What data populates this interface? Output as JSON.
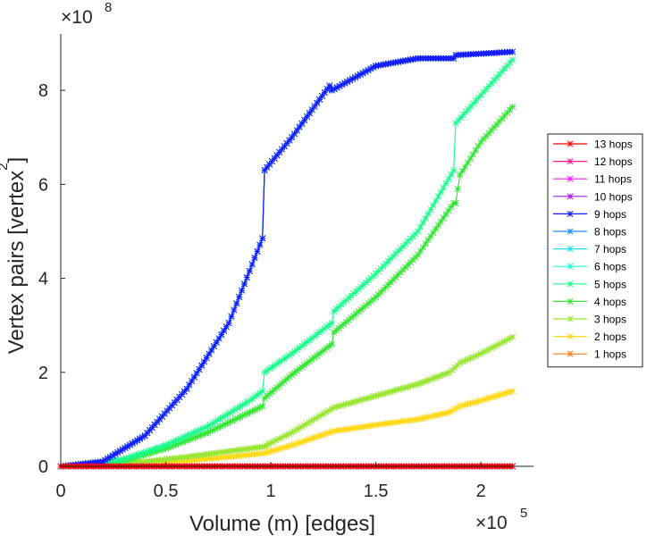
{
  "chart_data": {
    "type": "line",
    "title": "",
    "xlabel": "Volume (m) [edges]",
    "ylabel": "Vertex pairs [vertex",
    "ylabel_superscript": "2",
    "ylabel_close": "]",
    "x_multiplier": "×10",
    "x_multiplier_exp": "5",
    "y_multiplier": "×10",
    "y_multiplier_exp": "8",
    "xlim": [
      0,
      2.25
    ],
    "ylim": [
      0,
      9.2
    ],
    "x_ticks": [
      0,
      0.5,
      1,
      1.5,
      2
    ],
    "x_tick_labels": [
      "0",
      "0.5",
      "1",
      "1.5",
      "2"
    ],
    "y_ticks": [
      0,
      2,
      4,
      6,
      8
    ],
    "y_tick_labels": [
      "0",
      "2",
      "4",
      "6",
      "8"
    ],
    "legend_position": "right",
    "series": [
      {
        "name": "13 hops",
        "color": "#ff0000",
        "x": [
          0,
          2.15
        ],
        "y": [
          0,
          0
        ]
      },
      {
        "name": "12 hops",
        "color": "#ff1a8c",
        "x": [
          0,
          2.15
        ],
        "y": [
          0,
          0
        ]
      },
      {
        "name": "11 hops",
        "color": "#ff1aff",
        "x": [
          0,
          2.15
        ],
        "y": [
          0,
          0
        ]
      },
      {
        "name": "10 hops",
        "color": "#a61aff",
        "x": [
          0,
          2.15
        ],
        "y": [
          0,
          0
        ]
      },
      {
        "name": "9 hops",
        "color": "#1a1aff",
        "x": [
          0,
          0.2,
          0.4,
          0.6,
          0.8,
          0.96,
          0.97,
          1.1,
          1.28,
          1.29,
          1.5,
          1.7,
          1.87,
          1.88,
          2.0,
          2.15
        ],
        "y": [
          0,
          0.1,
          0.65,
          1.65,
          3.05,
          4.85,
          6.3,
          7.0,
          8.1,
          8.0,
          8.52,
          8.68,
          8.68,
          8.75,
          8.78,
          8.82
        ]
      },
      {
        "name": "8 hops",
        "color": "#1a8cff",
        "x": [
          0,
          0.2,
          0.4,
          0.6,
          0.8,
          0.96,
          0.97,
          1.1,
          1.28,
          1.29,
          1.5,
          1.7,
          1.87,
          1.88,
          2.0,
          2.15
        ],
        "y": [
          0,
          0.1,
          0.65,
          1.65,
          3.05,
          4.85,
          6.3,
          7.0,
          8.1,
          8.0,
          8.52,
          8.68,
          8.68,
          8.75,
          8.78,
          8.82
        ]
      },
      {
        "name": "7 hops",
        "color": "#1adfff",
        "x": [
          0,
          0.2,
          0.4,
          0.6,
          0.8,
          0.96,
          0.97,
          1.1,
          1.28,
          1.29,
          1.5,
          1.7,
          1.87,
          1.88,
          2.0,
          2.15
        ],
        "y": [
          0,
          0.1,
          0.65,
          1.65,
          3.05,
          4.85,
          6.3,
          7.0,
          8.1,
          8.0,
          8.52,
          8.68,
          8.68,
          8.75,
          8.78,
          8.82
        ]
      },
      {
        "name": "6 hops",
        "color": "#1affd9",
        "x": [
          0,
          0.2,
          0.4,
          0.6,
          0.8,
          0.96,
          0.97,
          1.1,
          1.28,
          1.29,
          1.5,
          1.7,
          1.87,
          1.88,
          2.0,
          2.15
        ],
        "y": [
          0,
          0.1,
          0.65,
          1.65,
          3.05,
          4.85,
          6.3,
          7.0,
          8.1,
          8.0,
          8.52,
          8.68,
          8.68,
          8.75,
          8.78,
          8.82
        ]
      },
      {
        "name": "5 hops",
        "color": "#1aff8c",
        "x": [
          0,
          0.1,
          0.3,
          0.5,
          0.7,
          0.9,
          0.96,
          0.97,
          1.1,
          1.29,
          1.3,
          1.5,
          1.7,
          1.87,
          1.88,
          2.0,
          2.15
        ],
        "y": [
          0,
          0.02,
          0.15,
          0.45,
          0.85,
          1.4,
          1.6,
          2.0,
          2.4,
          3.05,
          3.3,
          4.1,
          5.0,
          6.3,
          7.3,
          7.9,
          8.65
        ]
      },
      {
        "name": "4 hops",
        "color": "#33e633",
        "x": [
          0,
          0.1,
          0.3,
          0.5,
          0.7,
          0.9,
          0.96,
          0.97,
          1.1,
          1.29,
          1.3,
          1.5,
          1.7,
          1.87,
          1.88,
          1.9,
          2.0,
          2.15
        ],
        "y": [
          0,
          0.02,
          0.12,
          0.38,
          0.72,
          1.15,
          1.28,
          1.45,
          1.95,
          2.6,
          2.85,
          3.6,
          4.5,
          5.6,
          5.6,
          6.2,
          6.9,
          7.65
        ]
      },
      {
        "name": "3 hops",
        "color": "#99e633",
        "x": [
          0,
          0.2,
          0.4,
          0.6,
          0.8,
          0.9,
          0.97,
          1.0,
          1.1,
          1.3,
          1.5,
          1.7,
          1.85,
          1.9,
          2.0,
          2.15
        ],
        "y": [
          0,
          0.03,
          0.1,
          0.2,
          0.32,
          0.38,
          0.42,
          0.5,
          0.72,
          1.25,
          1.5,
          1.75,
          2.0,
          2.2,
          2.4,
          2.75
        ]
      },
      {
        "name": "2 hops",
        "color": "#ffd91a",
        "x": [
          0,
          0.2,
          0.4,
          0.6,
          0.8,
          0.97,
          1.0,
          1.1,
          1.3,
          1.5,
          1.7,
          1.85,
          1.9,
          2.0,
          2.15
        ],
        "y": [
          0,
          0.02,
          0.06,
          0.12,
          0.2,
          0.28,
          0.32,
          0.45,
          0.75,
          0.88,
          1.0,
          1.15,
          1.28,
          1.4,
          1.6
        ]
      },
      {
        "name": "1 hops",
        "color": "#ff7f1a",
        "x": [
          0,
          2.15
        ],
        "y": [
          0,
          0.003
        ]
      }
    ]
  }
}
